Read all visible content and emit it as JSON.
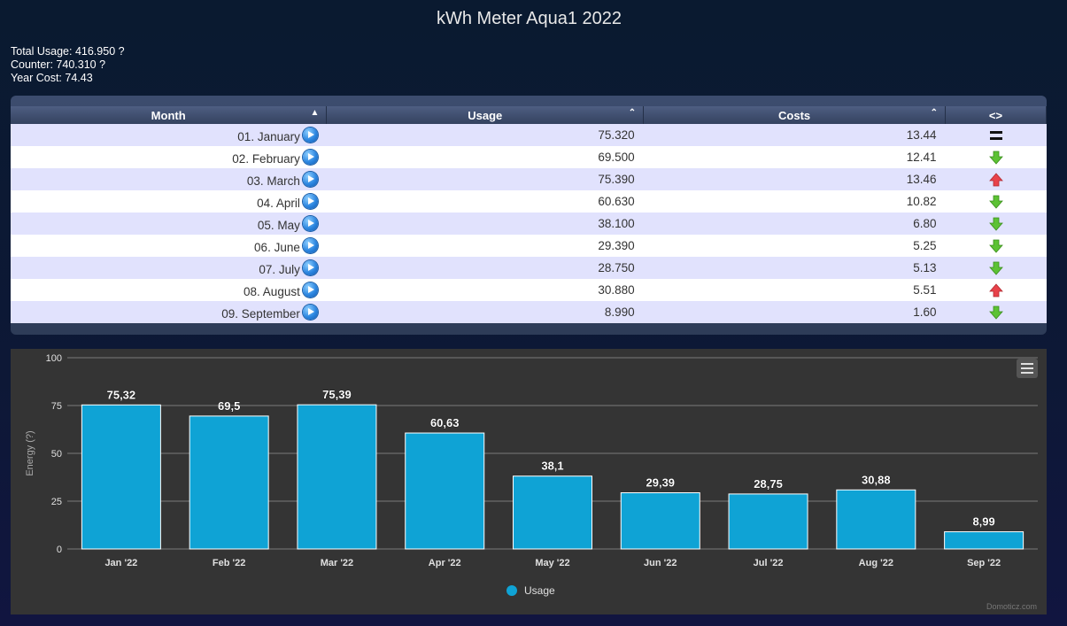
{
  "title": "kWh Meter Aqua1 2022",
  "summary": {
    "total_usage": "Total Usage: 416.950 ?",
    "counter": "Counter: 740.310 ?",
    "year_cost": "Year Cost: 74.43"
  },
  "table": {
    "headers": {
      "month": "Month",
      "usage": "Usage",
      "costs": "Costs",
      "trend": "<>"
    },
    "rows": [
      {
        "month": "01. January",
        "usage": "75.320",
        "costs": "13.44",
        "trend": "equal"
      },
      {
        "month": "02. February",
        "usage": "69.500",
        "costs": "12.41",
        "trend": "down"
      },
      {
        "month": "03. March",
        "usage": "75.390",
        "costs": "13.46",
        "trend": "up"
      },
      {
        "month": "04. April",
        "usage": "60.630",
        "costs": "10.82",
        "trend": "down"
      },
      {
        "month": "05. May",
        "usage": "38.100",
        "costs": "6.80",
        "trend": "down"
      },
      {
        "month": "06. June",
        "usage": "29.390",
        "costs": "5.25",
        "trend": "down"
      },
      {
        "month": "07. July",
        "usage": "28.750",
        "costs": "5.13",
        "trend": "down"
      },
      {
        "month": "08. August",
        "usage": "30.880",
        "costs": "5.51",
        "trend": "up"
      },
      {
        "month": "09. September",
        "usage": "8.990",
        "costs": "1.60",
        "trend": "down"
      }
    ]
  },
  "colors": {
    "bar": "#0fa3d5",
    "up_arrow": "#e8424a",
    "down_arrow": "#5cc234",
    "chart_bg": "#343434"
  },
  "chart_data": {
    "type": "bar",
    "categories": [
      "Jan '22",
      "Feb '22",
      "Mar '22",
      "Apr '22",
      "May '22",
      "Jun '22",
      "Jul '22",
      "Aug '22",
      "Sep '22"
    ],
    "series": [
      {
        "name": "Usage",
        "values": [
          75.32,
          69.5,
          75.39,
          60.63,
          38.1,
          29.39,
          28.75,
          30.88,
          8.99
        ]
      }
    ],
    "data_labels": [
      "75,32",
      "69,5",
      "75,39",
      "60,63",
      "38,1",
      "29,39",
      "28,75",
      "30,88",
      "8,99"
    ],
    "ylabel": "Energy (?)",
    "ylim": [
      0,
      100
    ],
    "yticks": [
      "0",
      "25",
      "50",
      "75",
      "100"
    ],
    "grid": true,
    "legend": "bottom-center"
  },
  "chart_credit": "Domoticz.com"
}
